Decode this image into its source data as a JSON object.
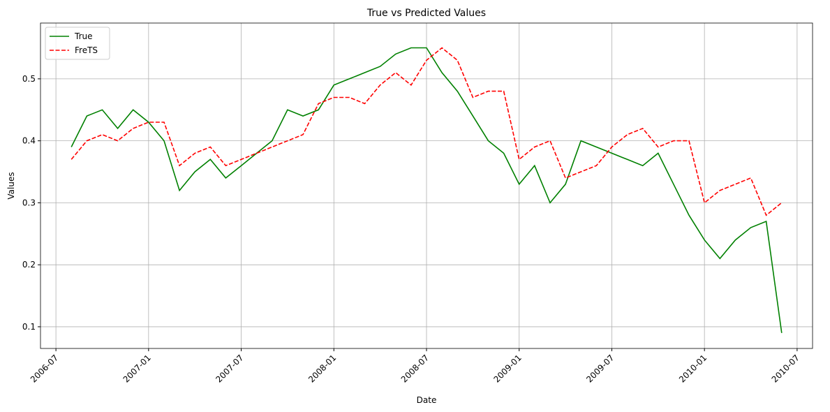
{
  "chart_data": {
    "type": "line",
    "title": "True vs Predicted Values",
    "xlabel": "Date",
    "ylabel": "Values",
    "x": [
      "2006-08",
      "2006-09",
      "2006-10",
      "2006-11",
      "2006-12",
      "2007-01",
      "2007-02",
      "2007-03",
      "2007-04",
      "2007-05",
      "2007-06",
      "2007-07",
      "2007-08",
      "2007-09",
      "2007-10",
      "2007-11",
      "2007-12",
      "2008-01",
      "2008-02",
      "2008-03",
      "2008-04",
      "2008-05",
      "2008-06",
      "2008-07",
      "2008-08",
      "2008-09",
      "2008-10",
      "2008-11",
      "2008-12",
      "2009-01",
      "2009-02",
      "2009-03",
      "2009-04",
      "2009-05",
      "2009-06",
      "2009-07",
      "2009-08",
      "2009-09",
      "2009-10",
      "2009-11",
      "2009-12",
      "2010-01",
      "2010-02",
      "2010-03",
      "2010-04",
      "2010-05",
      "2010-06"
    ],
    "series": [
      {
        "name": "True",
        "color": "#008000",
        "dash": false,
        "values": [
          0.39,
          0.44,
          0.45,
          0.42,
          0.45,
          0.43,
          0.4,
          0.32,
          0.35,
          0.37,
          0.34,
          0.36,
          0.38,
          0.4,
          0.45,
          0.44,
          0.45,
          0.49,
          0.5,
          0.51,
          0.52,
          0.54,
          0.55,
          0.55,
          0.51,
          0.48,
          0.44,
          0.4,
          0.38,
          0.33,
          0.36,
          0.3,
          0.33,
          0.4,
          0.39,
          0.38,
          0.37,
          0.36,
          0.38,
          0.33,
          0.28,
          0.24,
          0.21,
          0.24,
          0.26,
          0.27,
          0.09
        ]
      },
      {
        "name": "FreTS",
        "color": "#ff0000",
        "dash": true,
        "values": [
          0.37,
          0.4,
          0.41,
          0.4,
          0.42,
          0.43,
          0.43,
          0.36,
          0.38,
          0.39,
          0.36,
          0.37,
          0.38,
          0.39,
          0.4,
          0.41,
          0.46,
          0.47,
          0.47,
          0.46,
          0.49,
          0.51,
          0.49,
          0.53,
          0.55,
          0.53,
          0.47,
          0.48,
          0.48,
          0.37,
          0.39,
          0.4,
          0.34,
          0.35,
          0.36,
          0.39,
          0.41,
          0.42,
          0.39,
          0.4,
          0.4,
          0.3,
          0.32,
          0.33,
          0.34,
          0.28,
          0.3
        ]
      }
    ],
    "xlim": [
      "2006-06",
      "2010-08"
    ],
    "xticks": [
      "2006-07",
      "2007-01",
      "2007-07",
      "2008-01",
      "2008-07",
      "2009-01",
      "2009-07",
      "2010-01",
      "2010-07"
    ],
    "ylim": [
      0.065,
      0.59
    ],
    "yticks": [
      0.1,
      0.2,
      0.3,
      0.4,
      0.5
    ],
    "grid": true,
    "legend": "upper left"
  }
}
